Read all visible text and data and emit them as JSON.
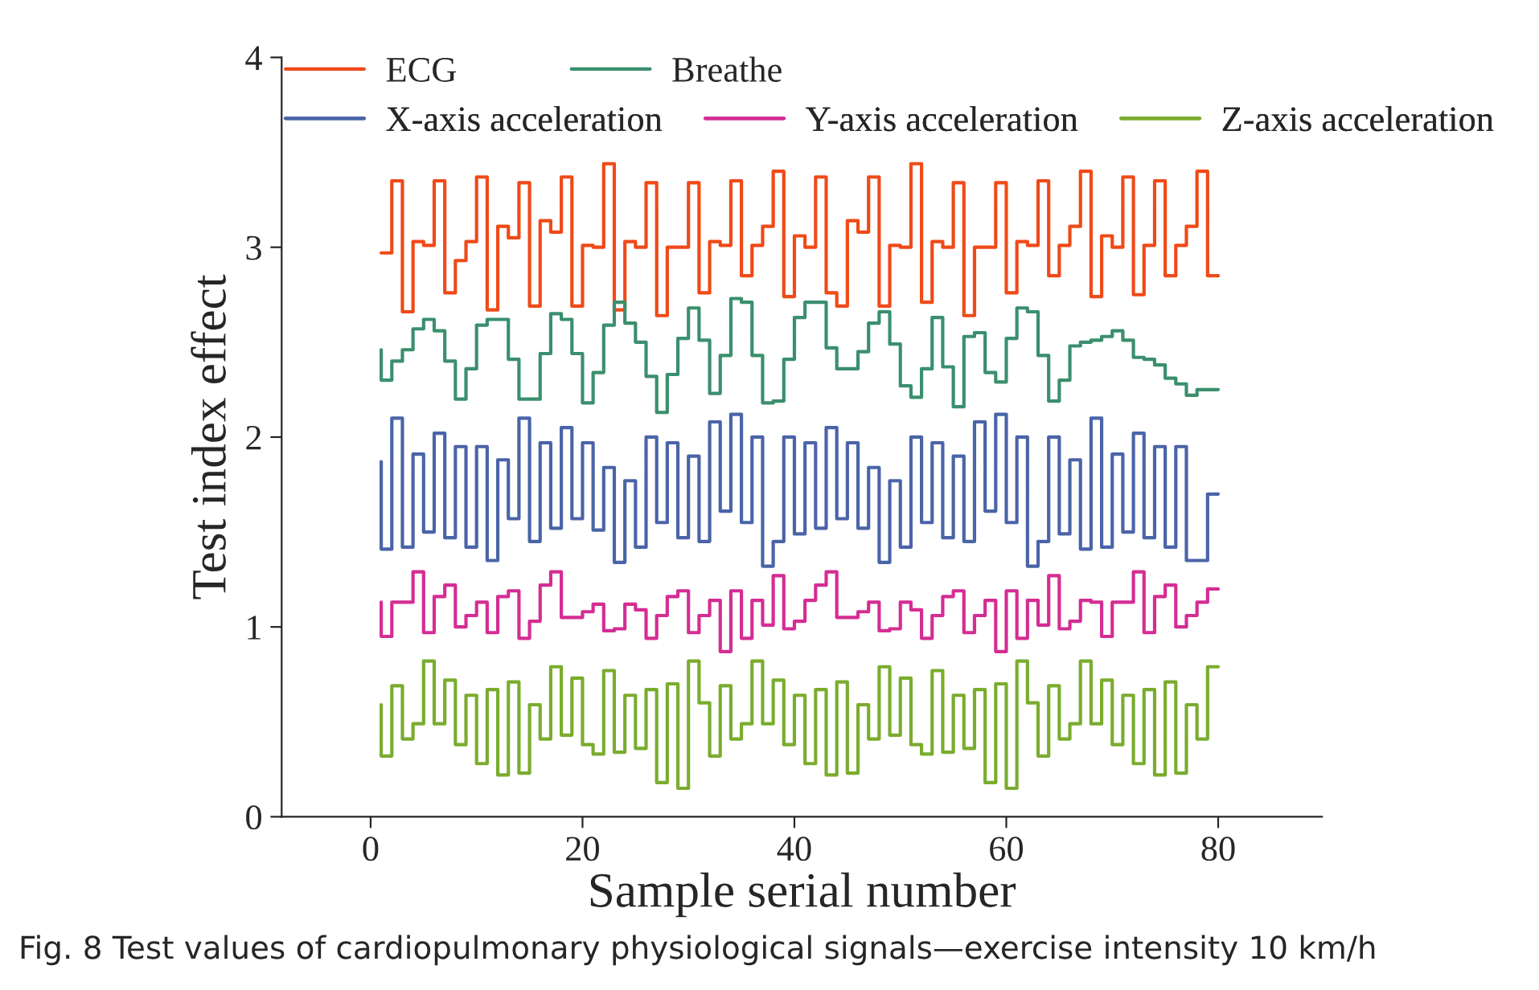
{
  "chart_data": {
    "type": "step",
    "xlabel": "Sample serial number",
    "ylabel": "Test index effect",
    "x": [
      1,
      2,
      3,
      4,
      5,
      6,
      7,
      8,
      9,
      10,
      11,
      12,
      13,
      14,
      15,
      16,
      17,
      18,
      19,
      20,
      21,
      22,
      23,
      24,
      25,
      26,
      27,
      28,
      29,
      30,
      31,
      32,
      33,
      34,
      35,
      36,
      37,
      38,
      39,
      40,
      41,
      42,
      43,
      44,
      45,
      46,
      47,
      48,
      49,
      50,
      51,
      52,
      53,
      54,
      55,
      56,
      57,
      58,
      59,
      60,
      61,
      62,
      63,
      64,
      65,
      66,
      67,
      68,
      69,
      70,
      71,
      72,
      73,
      74,
      75,
      76,
      77,
      78,
      79,
      80
    ],
    "xlim": [
      -8.4,
      89.8
    ],
    "xticks": [
      0,
      20,
      40,
      60,
      80
    ],
    "ylim": [
      0,
      4
    ],
    "yticks": [
      0,
      1,
      2,
      3,
      4
    ],
    "grid": false,
    "legend": "top",
    "line_style": "solid",
    "marker": "none",
    "series": [
      {
        "name": "ECG",
        "color": "#ef4a18",
        "values": [
          2.97,
          2.97,
          3.35,
          2.66,
          3.03,
          3.01,
          3.35,
          2.76,
          2.93,
          3.03,
          3.37,
          2.67,
          3.11,
          3.05,
          3.34,
          2.69,
          3.14,
          3.08,
          3.37,
          2.69,
          3.01,
          3.0,
          3.44,
          2.67,
          3.03,
          3.0,
          3.34,
          2.64,
          3.0,
          3.0,
          3.34,
          2.76,
          3.03,
          3.01,
          3.35,
          2.85,
          3.01,
          3.11,
          3.4,
          2.74,
          3.06,
          3.0,
          3.37,
          2.76,
          2.69,
          3.14,
          3.08,
          3.37,
          2.69,
          3.01,
          3.0,
          3.44,
          2.71,
          3.03,
          3.0,
          3.34,
          2.64,
          3.0,
          3.0,
          3.34,
          2.76,
          3.03,
          3.01,
          3.35,
          2.85,
          3.01,
          3.11,
          3.4,
          2.74,
          3.06,
          3.0,
          3.37,
          2.75,
          3.01,
          3.35,
          2.85,
          3.01,
          3.11,
          3.4,
          2.85
        ]
      },
      {
        "name": "Breathe",
        "color": "#3a8f6e",
        "values": [
          2.46,
          2.3,
          2.4,
          2.46,
          2.57,
          2.62,
          2.56,
          2.4,
          2.2,
          2.36,
          2.59,
          2.62,
          2.62,
          2.41,
          2.2,
          2.2,
          2.44,
          2.65,
          2.62,
          2.44,
          2.18,
          2.34,
          2.59,
          2.71,
          2.6,
          2.5,
          2.32,
          2.13,
          2.33,
          2.52,
          2.68,
          2.51,
          2.23,
          2.43,
          2.73,
          2.71,
          2.43,
          2.18,
          2.19,
          2.41,
          2.63,
          2.71,
          2.71,
          2.47,
          2.36,
          2.36,
          2.45,
          2.6,
          2.66,
          2.49,
          2.27,
          2.21,
          2.36,
          2.63,
          2.37,
          2.16,
          2.53,
          2.55,
          2.34,
          2.29,
          2.52,
          2.68,
          2.66,
          2.43,
          2.19,
          2.3,
          2.48,
          2.5,
          2.51,
          2.53,
          2.56,
          2.51,
          2.42,
          2.41,
          2.38,
          2.31,
          2.28,
          2.22,
          2.25,
          2.25
        ]
      },
      {
        "name": "X-axis acceleration",
        "color": "#4a64a8",
        "values": [
          1.87,
          1.41,
          2.1,
          1.42,
          1.91,
          1.5,
          2.02,
          1.47,
          1.95,
          1.42,
          1.95,
          1.35,
          1.88,
          1.57,
          2.1,
          1.45,
          1.97,
          1.52,
          2.05,
          1.57,
          1.97,
          1.51,
          1.84,
          1.34,
          1.77,
          1.42,
          2.0,
          1.55,
          1.97,
          1.47,
          1.9,
          1.45,
          2.08,
          1.61,
          2.12,
          1.55,
          2.0,
          1.32,
          1.45,
          2.0,
          1.49,
          1.97,
          1.52,
          2.05,
          1.57,
          1.97,
          1.52,
          1.84,
          1.34,
          1.77,
          1.42,
          2.0,
          1.55,
          1.97,
          1.47,
          1.9,
          1.45,
          2.08,
          1.61,
          2.12,
          1.55,
          2.0,
          1.32,
          1.45,
          2.0,
          1.49,
          1.88,
          1.41,
          2.1,
          1.42,
          1.91,
          1.5,
          2.02,
          1.47,
          1.95,
          1.42,
          1.95,
          1.35,
          1.35,
          1.7
        ]
      },
      {
        "name": "Y-axis acceleration",
        "color": "#d42d93",
        "values": [
          1.13,
          0.95,
          1.13,
          1.13,
          1.29,
          0.97,
          1.16,
          1.22,
          1.0,
          1.06,
          1.13,
          0.97,
          1.16,
          1.19,
          0.94,
          1.03,
          1.22,
          1.29,
          1.05,
          1.05,
          1.08,
          1.12,
          0.98,
          0.99,
          1.12,
          1.09,
          0.94,
          1.06,
          1.16,
          1.19,
          0.97,
          1.06,
          1.14,
          0.87,
          1.19,
          0.94,
          1.14,
          1.01,
          1.27,
          0.99,
          1.03,
          1.14,
          1.22,
          1.29,
          1.05,
          1.05,
          1.08,
          1.13,
          0.98,
          0.99,
          1.13,
          1.09,
          0.94,
          1.06,
          1.16,
          1.19,
          0.97,
          1.06,
          1.14,
          0.87,
          1.19,
          0.94,
          1.14,
          1.01,
          1.27,
          0.99,
          1.03,
          1.14,
          1.13,
          0.95,
          1.13,
          1.13,
          1.29,
          0.97,
          1.16,
          1.22,
          1.0,
          1.06,
          1.13,
          1.2
        ]
      },
      {
        "name": "Z-axis acceleration",
        "color": "#7aac2e",
        "values": [
          0.59,
          0.32,
          0.69,
          0.41,
          0.49,
          0.82,
          0.49,
          0.72,
          0.38,
          0.64,
          0.28,
          0.67,
          0.22,
          0.71,
          0.23,
          0.59,
          0.41,
          0.79,
          0.43,
          0.73,
          0.38,
          0.33,
          0.77,
          0.34,
          0.64,
          0.36,
          0.67,
          0.18,
          0.7,
          0.15,
          0.82,
          0.6,
          0.32,
          0.69,
          0.41,
          0.49,
          0.82,
          0.49,
          0.72,
          0.38,
          0.64,
          0.28,
          0.67,
          0.22,
          0.71,
          0.23,
          0.59,
          0.41,
          0.79,
          0.43,
          0.73,
          0.38,
          0.33,
          0.77,
          0.34,
          0.64,
          0.36,
          0.67,
          0.18,
          0.7,
          0.15,
          0.82,
          0.6,
          0.32,
          0.69,
          0.41,
          0.49,
          0.82,
          0.49,
          0.72,
          0.38,
          0.64,
          0.28,
          0.67,
          0.22,
          0.71,
          0.23,
          0.59,
          0.41,
          0.79
        ]
      }
    ],
    "annotations": [
      "Fig. 8 Test values of cardiopulmonary physiological signals—exercise intensity 10 km/h"
    ]
  }
}
